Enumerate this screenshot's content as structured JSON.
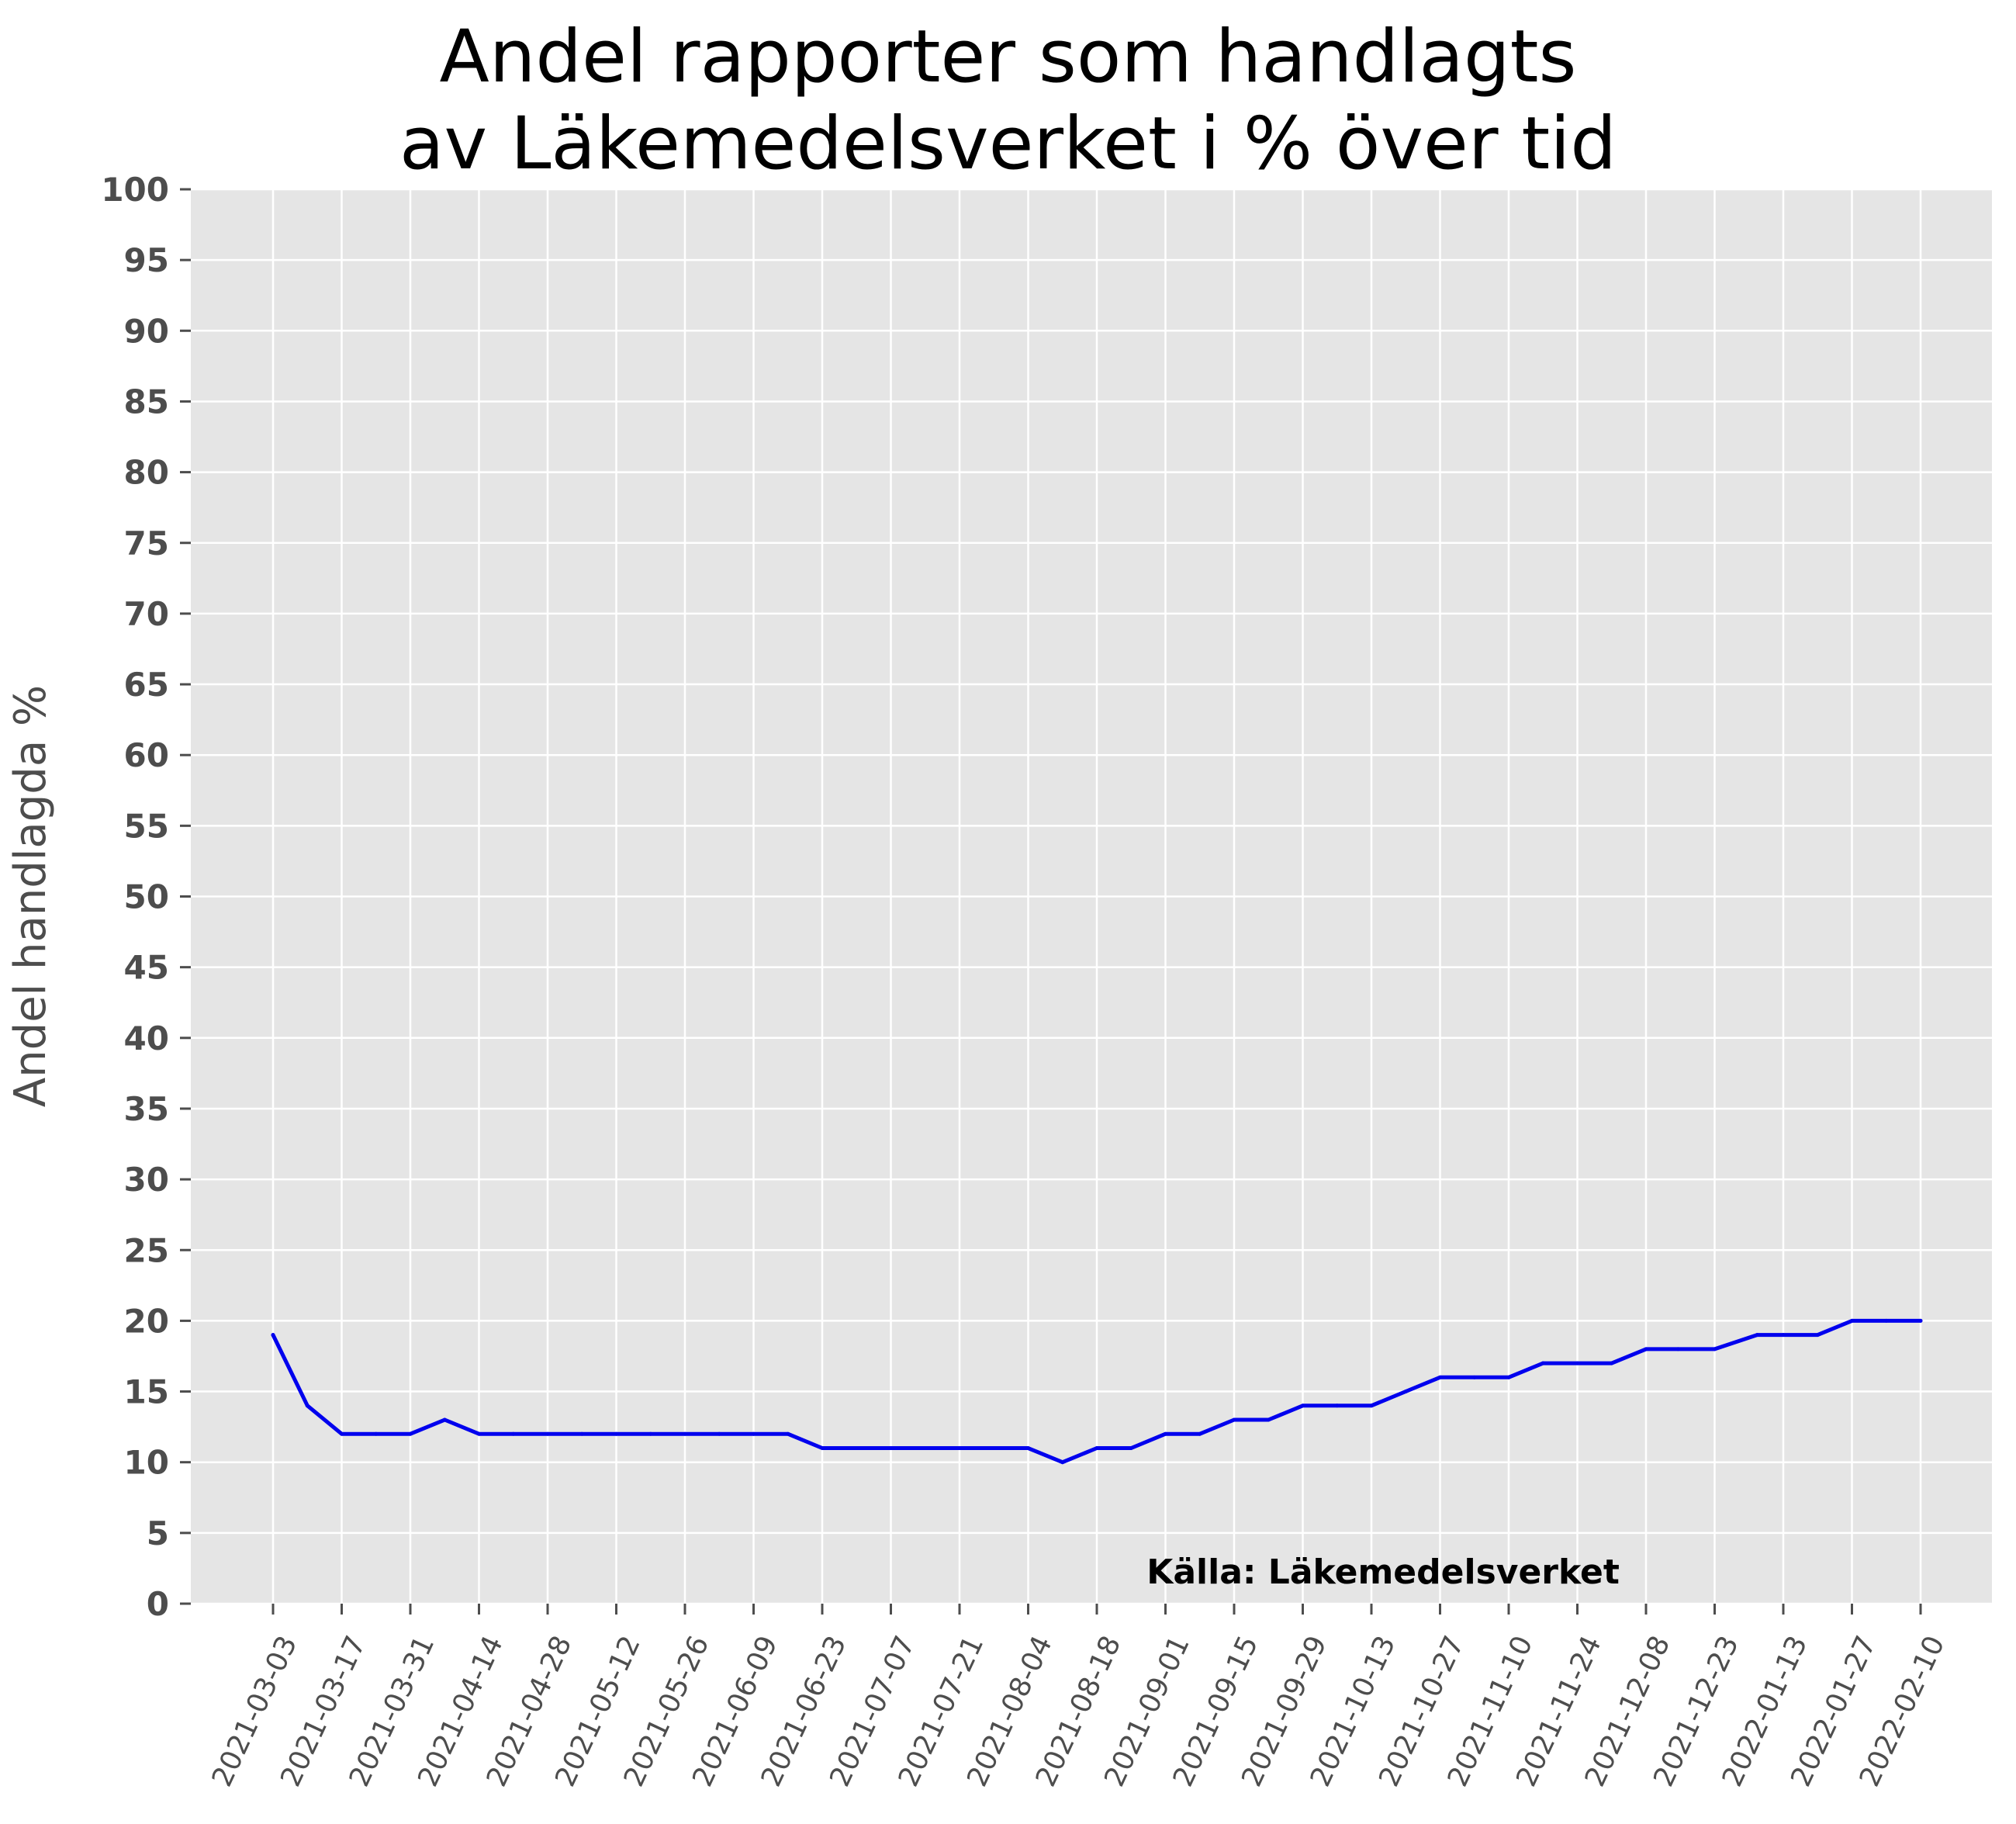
{
  "chart_data": {
    "type": "line",
    "title": [
      "Andel rapporter som handlagts",
      "av Läkemedelsverket i % över tid"
    ],
    "xlabel": "",
    "ylabel": "Andel handlagda %",
    "ylim": [
      0,
      100
    ],
    "yticks": [
      0,
      5,
      10,
      15,
      20,
      25,
      30,
      35,
      40,
      45,
      50,
      55,
      60,
      65,
      70,
      75,
      80,
      85,
      90,
      95,
      100
    ],
    "xticks": [
      "2021-03-03",
      "2021-03-17",
      "2021-03-31",
      "2021-04-14",
      "2021-04-28",
      "2021-05-12",
      "2021-05-26",
      "2021-06-09",
      "2021-06-23",
      "2021-07-07",
      "2021-07-21",
      "2021-08-04",
      "2021-08-18",
      "2021-09-01",
      "2021-09-15",
      "2021-09-29",
      "2021-10-13",
      "2021-10-27",
      "2021-11-10",
      "2021-11-24",
      "2021-12-08",
      "2021-12-23",
      "2022-01-13",
      "2022-01-27",
      "2022-02-10"
    ],
    "grid": true,
    "series": [
      {
        "color": "#0000ee",
        "points": [
          {
            "x": "2021-03-03",
            "y": 19
          },
          {
            "x": "2021-03-10",
            "y": 14
          },
          {
            "x": "2021-03-17",
            "y": 12
          },
          {
            "x": "2021-03-24",
            "y": 12
          },
          {
            "x": "2021-03-31",
            "y": 12
          },
          {
            "x": "2021-04-07",
            "y": 13
          },
          {
            "x": "2021-04-14",
            "y": 12
          },
          {
            "x": "2021-04-21",
            "y": 12
          },
          {
            "x": "2021-04-28",
            "y": 12
          },
          {
            "x": "2021-05-05",
            "y": 12
          },
          {
            "x": "2021-05-12",
            "y": 12
          },
          {
            "x": "2021-05-19",
            "y": 12
          },
          {
            "x": "2021-05-26",
            "y": 12
          },
          {
            "x": "2021-06-02",
            "y": 12
          },
          {
            "x": "2021-06-09",
            "y": 12
          },
          {
            "x": "2021-06-16",
            "y": 12
          },
          {
            "x": "2021-06-23",
            "y": 11
          },
          {
            "x": "2021-06-30",
            "y": 11
          },
          {
            "x": "2021-07-07",
            "y": 11
          },
          {
            "x": "2021-07-14",
            "y": 11
          },
          {
            "x": "2021-07-21",
            "y": 11
          },
          {
            "x": "2021-07-28",
            "y": 11
          },
          {
            "x": "2021-08-04",
            "y": 11
          },
          {
            "x": "2021-08-11",
            "y": 10
          },
          {
            "x": "2021-08-18",
            "y": 11
          },
          {
            "x": "2021-08-25",
            "y": 11
          },
          {
            "x": "2021-09-01",
            "y": 12
          },
          {
            "x": "2021-09-08",
            "y": 12
          },
          {
            "x": "2021-09-15",
            "y": 13
          },
          {
            "x": "2021-09-22",
            "y": 13
          },
          {
            "x": "2021-09-29",
            "y": 14
          },
          {
            "x": "2021-10-06",
            "y": 14
          },
          {
            "x": "2021-10-13",
            "y": 14
          },
          {
            "x": "2021-10-20",
            "y": 15
          },
          {
            "x": "2021-10-27",
            "y": 16
          },
          {
            "x": "2021-11-03",
            "y": 16
          },
          {
            "x": "2021-11-10",
            "y": 16
          },
          {
            "x": "2021-11-17",
            "y": 17
          },
          {
            "x": "2021-11-24",
            "y": 17
          },
          {
            "x": "2021-12-01",
            "y": 17
          },
          {
            "x": "2021-12-08",
            "y": 18
          },
          {
            "x": "2021-12-15",
            "y": 18
          },
          {
            "x": "2021-12-23",
            "y": 18
          },
          {
            "x": "2022-01-05",
            "y": 19
          },
          {
            "x": "2022-01-13",
            "y": 19
          },
          {
            "x": "2022-01-20",
            "y": 19
          },
          {
            "x": "2022-01-27",
            "y": 20
          },
          {
            "x": "2022-02-03",
            "y": 20
          },
          {
            "x": "2022-02-10",
            "y": 20
          }
        ]
      }
    ],
    "annotations": [
      {
        "text": "Källa: Läkemedelsverket",
        "x": "2021-08-25",
        "y": 1
      }
    ],
    "colors": {
      "plot_background": "#e5e5e5",
      "grid": "#ffffff",
      "tick_text": "#4d4d4d",
      "title_text": "#000000"
    }
  }
}
